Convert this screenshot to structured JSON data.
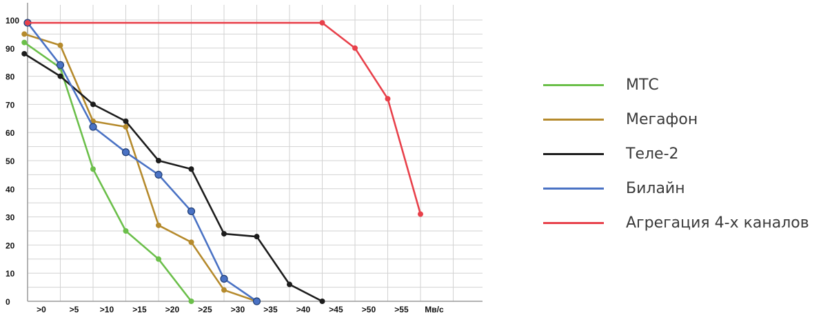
{
  "chart_data": {
    "type": "line",
    "title": "",
    "xlabel": "",
    "ylabel": "",
    "ylim": [
      0,
      100
    ],
    "grid": true,
    "legend_position": "right",
    "yticks": [
      "0",
      "10",
      "20",
      "30",
      "40",
      "50",
      "60",
      "70",
      "80",
      "90",
      "100"
    ],
    "xticks": [
      ">0",
      ">5",
      ">10",
      ">15",
      ">20",
      ">25",
      ">30",
      ">35",
      ">40",
      ">45",
      ">50",
      ">55",
      "Мв/с"
    ],
    "series": [
      {
        "name": "МТС",
        "color": "#6bbf4a",
        "marker": "dot",
        "x": [
          -0.1,
          1,
          2,
          3,
          4,
          5
        ],
        "y": [
          92,
          83,
          47,
          25,
          15,
          0
        ]
      },
      {
        "name": "Мегафон",
        "color": "#b58a2c",
        "marker": "dot",
        "x": [
          -0.1,
          1,
          2,
          3,
          4,
          5,
          6,
          7
        ],
        "y": [
          95,
          91,
          64,
          62,
          27,
          21,
          4,
          0
        ]
      },
      {
        "name": "Теле-2",
        "color": "#1c1c1c",
        "marker": "dot",
        "x": [
          -0.1,
          1,
          2,
          3,
          4,
          5,
          6,
          7,
          8,
          9
        ],
        "y": [
          88,
          80,
          70,
          64,
          50,
          47,
          24,
          23,
          6,
          0
        ]
      },
      {
        "name": "Билайн",
        "color": "#4a72c4",
        "marker": "circle",
        "x": [
          0,
          1,
          2,
          3,
          4,
          5,
          6,
          7
        ],
        "y": [
          99,
          84,
          62,
          53,
          45,
          32,
          8,
          0
        ]
      },
      {
        "name": "Агрегация 4-х каналов",
        "color": "#e8404a",
        "marker": "dot",
        "x": [
          0,
          9,
          10,
          11,
          12
        ],
        "y": [
          99,
          99,
          90,
          72,
          31
        ]
      }
    ]
  }
}
